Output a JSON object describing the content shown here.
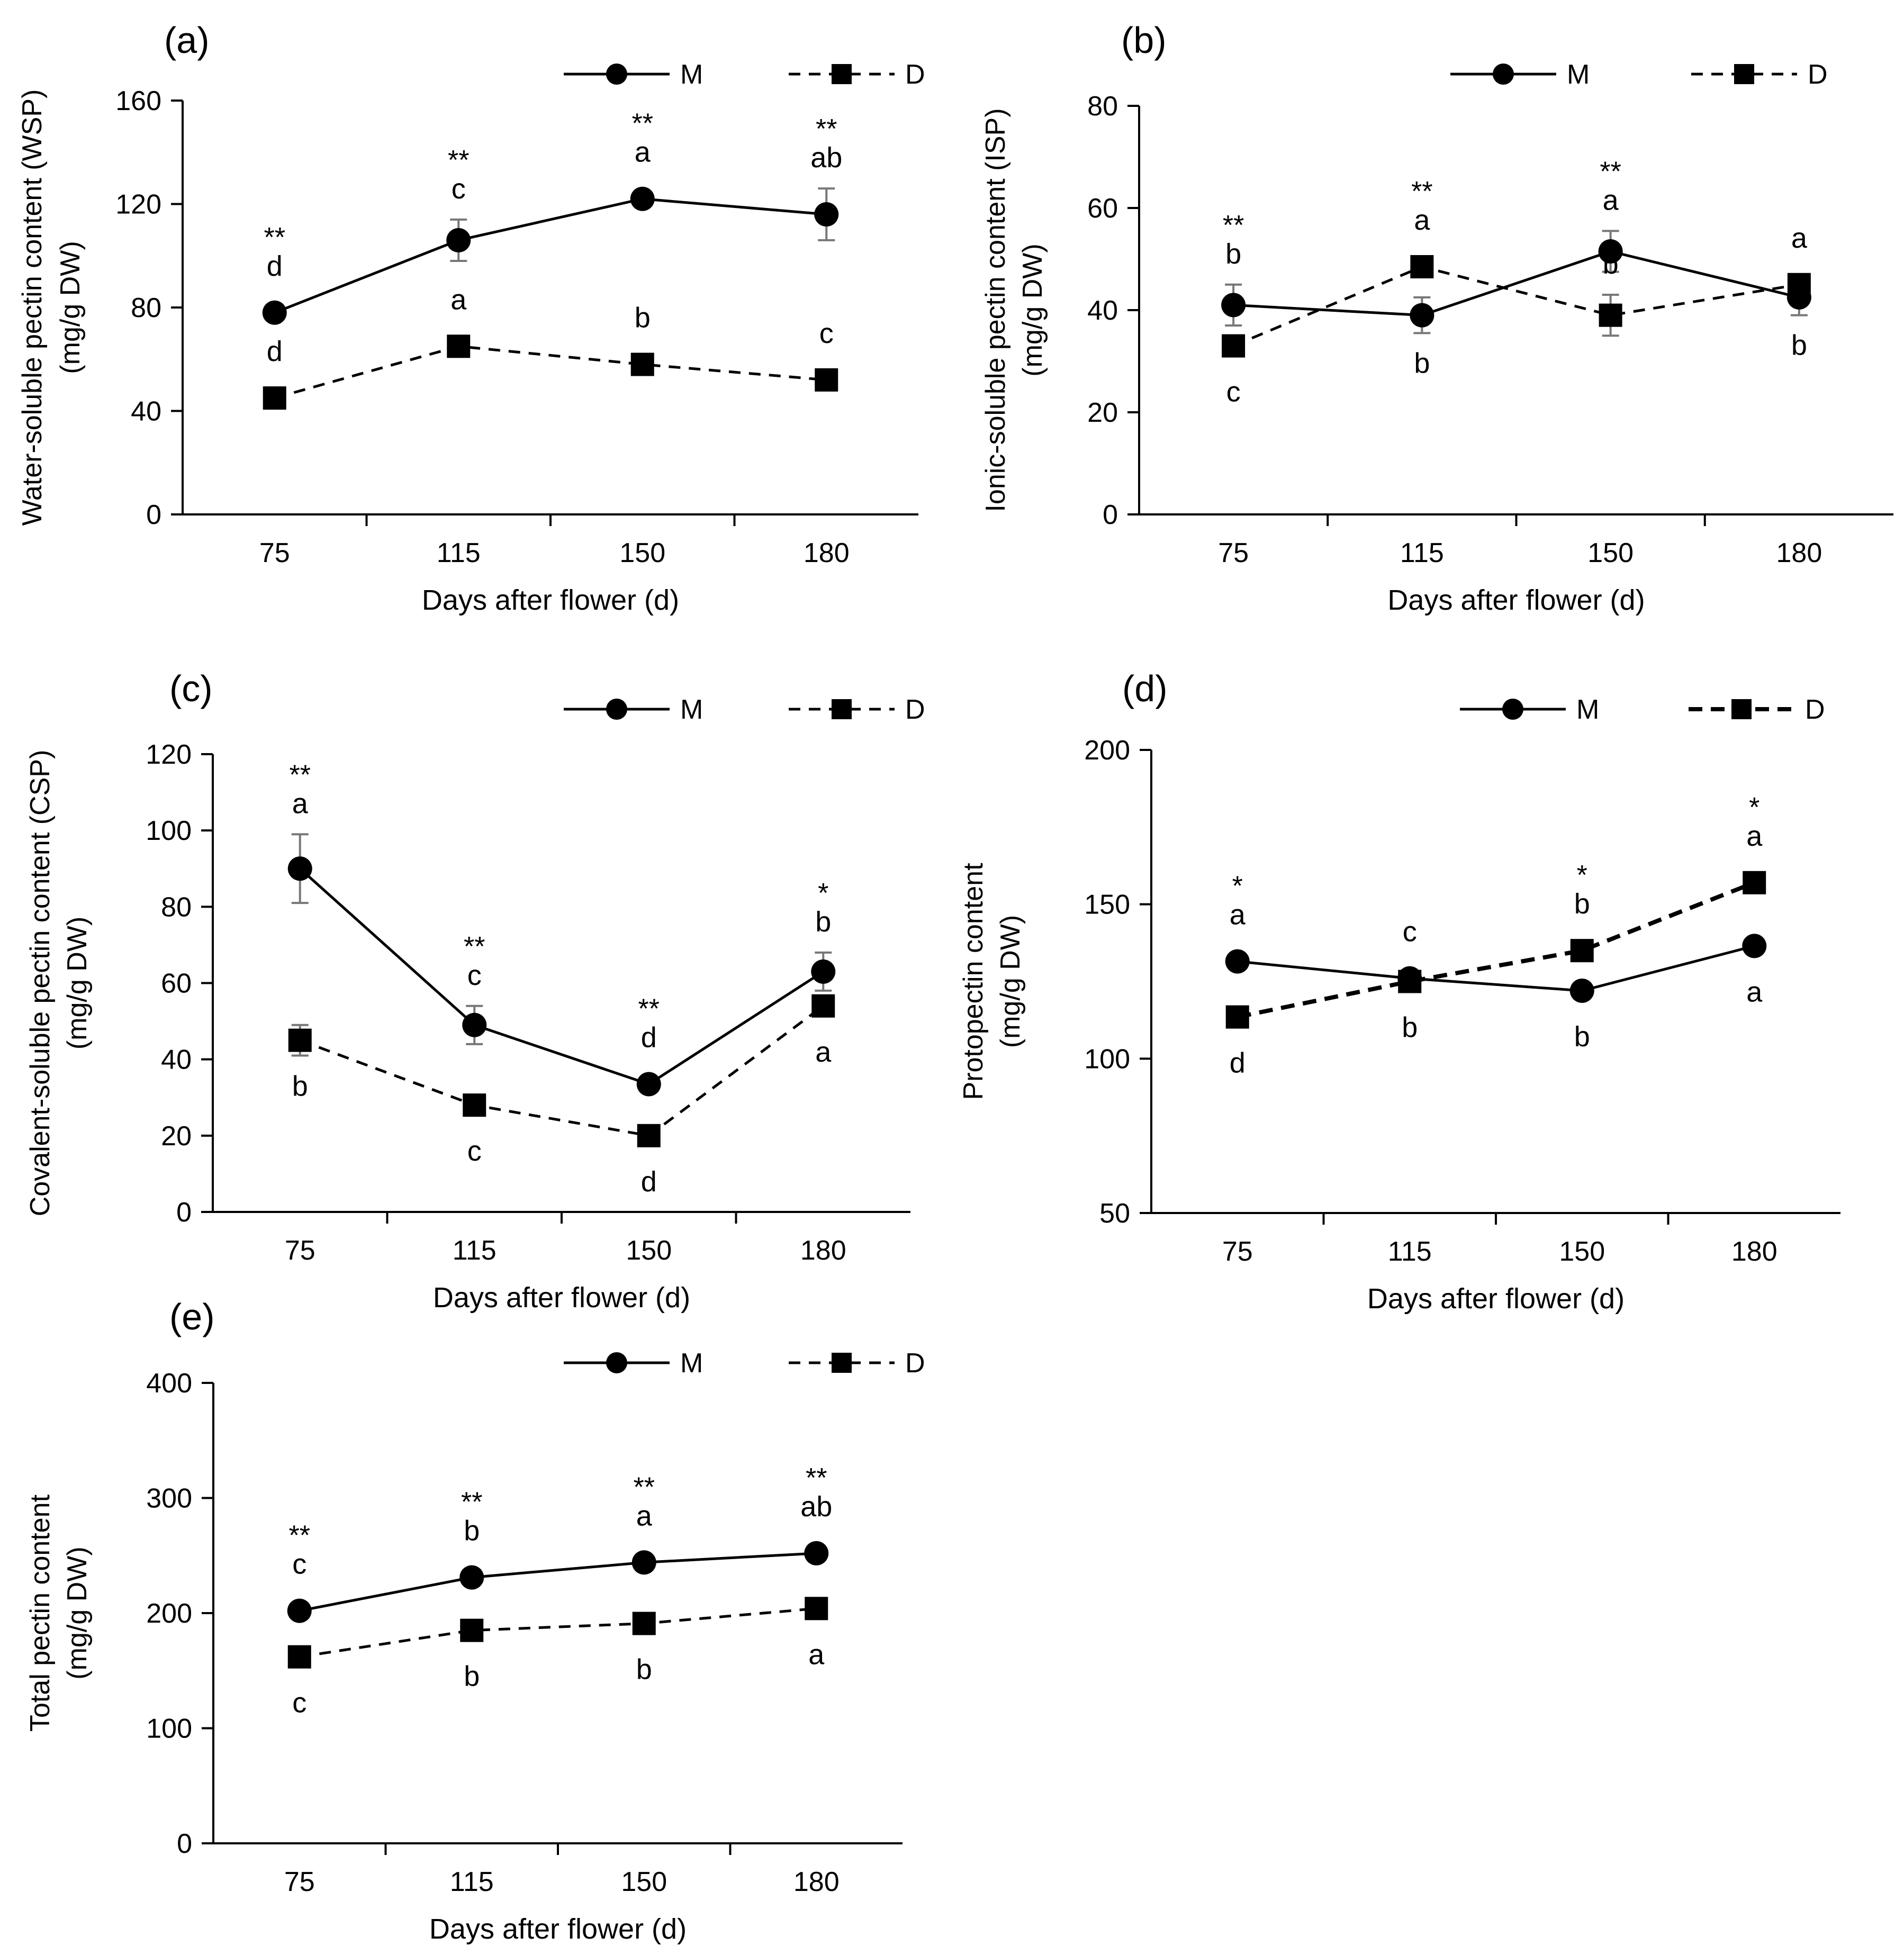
{
  "chart_data": [
    {
      "type": "line",
      "panel_label": "(a)",
      "xlabel": "Days after flower (d)",
      "ylabel_line1": "Water-soluble pectin content (WSP)",
      "ylabel_line2": "(mg/g DW)",
      "categories": [
        "75",
        "115",
        "150",
        "180"
      ],
      "ylim": [
        0,
        160
      ],
      "yticks": [
        0,
        40,
        80,
        120,
        160
      ],
      "grid": false,
      "legend_position": "top-right",
      "series": [
        {
          "name": "M",
          "marker": "circle",
          "dash": "solid",
          "values": [
            78,
            106,
            122,
            116
          ],
          "errors": [
            3,
            8,
            2,
            10
          ],
          "letters": [
            "d",
            "c",
            "a",
            "ab"
          ],
          "letter_pos": [
            "above",
            "above",
            "above",
            "above"
          ]
        },
        {
          "name": "D",
          "marker": "square",
          "dash": "dashed",
          "values": [
            45,
            65,
            58,
            52
          ],
          "errors": [
            2,
            2,
            2,
            2
          ],
          "letters": [
            "d",
            "a",
            "b",
            "c"
          ],
          "letter_pos": [
            "above",
            "above",
            "above",
            "above"
          ]
        }
      ],
      "significance": [
        "**",
        "**",
        "**",
        "**"
      ]
    },
    {
      "type": "line",
      "panel_label": "(b)",
      "xlabel": "Days after flower (d)",
      "ylabel_line1": "Ionic-soluble pectin content (ISP)",
      "ylabel_line2": "(mg/g  DW)",
      "categories": [
        "75",
        "115",
        "150",
        "180"
      ],
      "ylim": [
        0,
        80
      ],
      "yticks": [
        0,
        20,
        40,
        60,
        80
      ],
      "grid": false,
      "legend_position": "top-right",
      "series": [
        {
          "name": "M",
          "marker": "circle",
          "dash": "solid",
          "values": [
            41,
            39,
            51.5,
            42.5
          ],
          "errors": [
            4,
            3.5,
            4,
            3.5
          ],
          "letters": [
            "b",
            "b",
            "a",
            "b"
          ],
          "letter_pos": [
            "above",
            "below",
            "above",
            "below"
          ]
        },
        {
          "name": "D",
          "marker": "square",
          "dash": "dashed",
          "values": [
            33,
            48.5,
            39,
            45
          ],
          "errors": [
            2,
            2,
            4,
            2
          ],
          "letters": [
            "c",
            "a",
            "b",
            "a"
          ],
          "letter_pos": [
            "below",
            "above",
            "above",
            "above"
          ]
        }
      ],
      "significance": [
        "**",
        "**",
        "**",
        ""
      ]
    },
    {
      "type": "line",
      "panel_label": "(c)",
      "xlabel": "Days after flower (d)",
      "ylabel_line1": "Covalent-soluble pectin content (CSP)",
      "ylabel_line2": "(mg/g DW)",
      "categories": [
        "75",
        "115",
        "150",
        "180"
      ],
      "ylim": [
        0,
        120
      ],
      "yticks": [
        0,
        20,
        40,
        60,
        80,
        100,
        120
      ],
      "grid": false,
      "legend_position": "top-right",
      "series": [
        {
          "name": "M",
          "marker": "circle",
          "dash": "solid",
          "values": [
            90,
            49,
            33.5,
            63
          ],
          "errors": [
            9,
            5,
            2,
            5
          ],
          "letters": [
            "a",
            "c",
            "d",
            "b"
          ],
          "letter_pos": [
            "above",
            "above",
            "above",
            "above"
          ]
        },
        {
          "name": "D",
          "marker": "square",
          "dash": "dashed",
          "values": [
            45,
            28,
            20,
            54
          ],
          "errors": [
            4,
            2,
            2,
            2
          ],
          "letters": [
            "b",
            "c",
            "d",
            "a"
          ],
          "letter_pos": [
            "below",
            "below",
            "below",
            "below"
          ]
        }
      ],
      "significance": [
        "**",
        "**",
        "**",
        "*"
      ]
    },
    {
      "type": "line",
      "panel_label": "(d)",
      "xlabel": "Days after flower (d)",
      "ylabel_line1": "Protopectin content",
      "ylabel_line2": "(mg/g DW)",
      "categories": [
        "75",
        "115",
        "150",
        "180"
      ],
      "ylim": [
        50,
        200
      ],
      "yticks": [
        50,
        100,
        150,
        200
      ],
      "grid": false,
      "legend_position": "top-right",
      "series": [
        {
          "name": "M",
          "marker": "circle",
          "dash": "solid",
          "values": [
            131.5,
            126,
            122,
            136.5
          ],
          "errors": [
            2,
            2,
            2,
            2
          ],
          "letters": [
            "a",
            "c",
            "b",
            "a"
          ],
          "letter_pos": [
            "above",
            "above",
            "below",
            "below"
          ]
        },
        {
          "name": "D",
          "marker": "square",
          "dash": "dashed-bold",
          "values": [
            113.5,
            125,
            135,
            157
          ],
          "errors": [
            2,
            2,
            2,
            2
          ],
          "letters": [
            "d",
            "b",
            "b",
            "a"
          ],
          "letter_pos": [
            "below",
            "below",
            "above",
            "above"
          ]
        }
      ],
      "significance": [
        "*",
        "",
        "*",
        "*"
      ]
    },
    {
      "type": "line",
      "panel_label": "(e)",
      "xlabel": "Days after flower (d)",
      "ylabel_line1": "Total pectin content",
      "ylabel_line2": "(mg/g DW)",
      "categories": [
        "75",
        "115",
        "150",
        "180"
      ],
      "ylim": [
        0,
        400
      ],
      "yticks": [
        0,
        100,
        200,
        300,
        400
      ],
      "grid": false,
      "legend_position": "top-right",
      "series": [
        {
          "name": "M",
          "marker": "circle",
          "dash": "solid",
          "values": [
            202,
            231,
            244,
            252
          ],
          "errors": [
            3,
            3,
            3,
            3
          ],
          "letters": [
            "c",
            "b",
            "a",
            "ab"
          ],
          "letter_pos": [
            "above",
            "above",
            "above",
            "above"
          ]
        },
        {
          "name": "D",
          "marker": "square",
          "dash": "dashed",
          "values": [
            162,
            185,
            191,
            204
          ],
          "errors": [
            3,
            3,
            3,
            3
          ],
          "letters": [
            "c",
            "b",
            "b",
            "a"
          ],
          "letter_pos": [
            "below",
            "below",
            "below",
            "below"
          ]
        }
      ],
      "significance": [
        "**",
        "**",
        "**",
        "**"
      ]
    }
  ]
}
